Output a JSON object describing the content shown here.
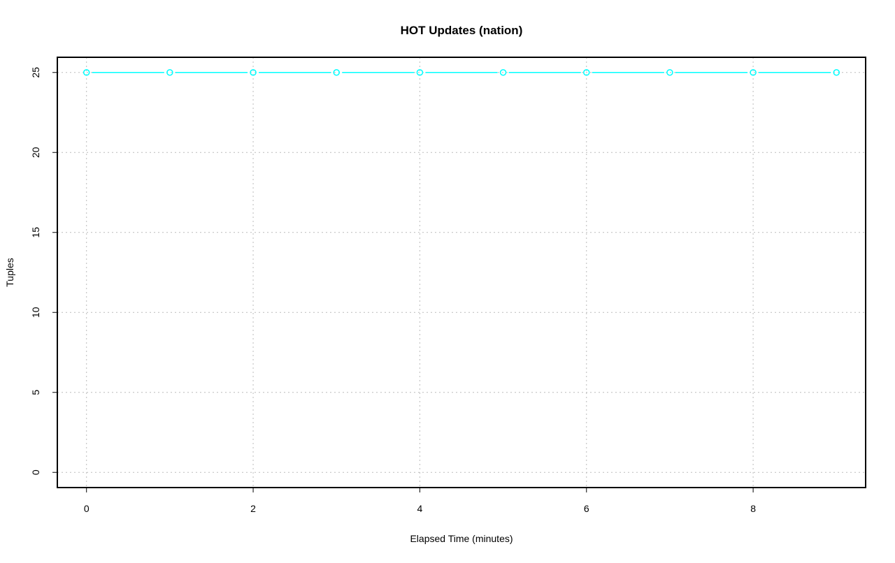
{
  "chart_data": {
    "type": "line",
    "title": "HOT Updates (nation)",
    "xlabel": "Elapsed Time (minutes)",
    "ylabel": "Tuples",
    "x": [
      0,
      1,
      2,
      3,
      4,
      5,
      6,
      7,
      8,
      9
    ],
    "series": [
      {
        "values": [
          25,
          25,
          25,
          25,
          25,
          25,
          25,
          25,
          25,
          25
        ],
        "color": "#00ffff"
      }
    ],
    "xticks": [
      0,
      2,
      4,
      6,
      8
    ],
    "yticks": [
      0,
      5,
      10,
      15,
      20,
      25
    ],
    "xlim": [
      -0.35,
      9.35
    ],
    "ylim": [
      -0.95,
      25.95
    ],
    "grid": true,
    "markers": "open-circle"
  }
}
